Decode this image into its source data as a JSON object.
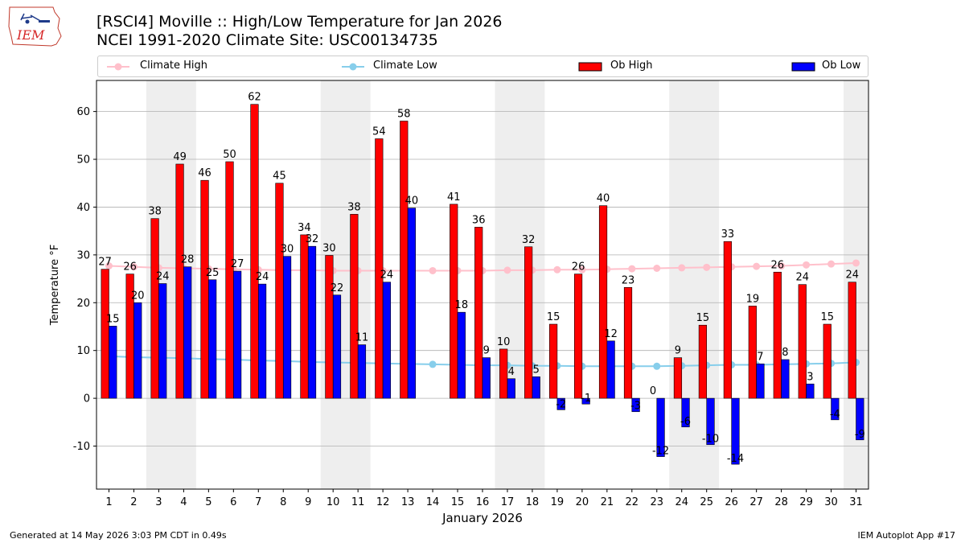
{
  "title_line1": "[RSCI4] Moville :: High/Low Temperature for Jan 2026",
  "title_line2": "NCEI 1991-2020 Climate Site: USC00134735",
  "footer_left": "Generated at 14 May 2026 3:03 PM CDT in 0.49s",
  "footer_right": "IEM Autoplot App #17",
  "logo_text": "IEM",
  "colors": {
    "ob_high": "#ff0000",
    "ob_low": "#0000ff",
    "climate_high": "#ffc0cb",
    "climate_low": "#87ceeb",
    "weekend_shade": "#eeeeee",
    "grid": "#b0b0b0"
  },
  "chart_data": {
    "type": "bar",
    "xlabel": "January 2026",
    "ylabel": "Temperature °F",
    "ylim": [
      -19,
      66.5
    ],
    "yticks": [
      -10,
      0,
      10,
      20,
      30,
      40,
      50,
      60
    ],
    "grid": "horizontal",
    "legend_position": "top",
    "categories": [
      "1",
      "2",
      "3",
      "4",
      "5",
      "6",
      "7",
      "8",
      "9",
      "10",
      "11",
      "12",
      "13",
      "14",
      "15",
      "16",
      "17",
      "18",
      "19",
      "20",
      "21",
      "22",
      "23",
      "24",
      "25",
      "26",
      "27",
      "28",
      "29",
      "30",
      "31"
    ],
    "shaded_days": [
      [
        3,
        4
      ],
      [
        10,
        11
      ],
      [
        17,
        18
      ],
      [
        24,
        25
      ],
      [
        31,
        31
      ]
    ],
    "series": [
      {
        "name": "Ob High",
        "kind": "bar",
        "values": [
          27,
          26,
          38,
          49,
          46,
          50,
          62,
          45,
          34,
          30,
          38,
          54,
          58,
          null,
          41,
          36,
          10,
          32,
          15,
          26,
          40,
          23,
          0,
          9,
          15,
          33,
          19,
          26,
          24,
          15,
          24
        ],
        "plotted": [
          27,
          26,
          37.6,
          49,
          45.6,
          49.5,
          61.5,
          45,
          34.2,
          29.9,
          38.5,
          54.3,
          58,
          null,
          40.6,
          35.8,
          10.3,
          31.7,
          15.5,
          26,
          40.3,
          23.2,
          0,
          8.5,
          15.3,
          32.8,
          19.3,
          26.4,
          23.8,
          15.5,
          24.3
        ]
      },
      {
        "name": "Ob Low",
        "kind": "bar",
        "values": [
          15,
          20,
          24,
          28,
          25,
          27,
          24,
          30,
          32,
          22,
          11,
          24,
          40,
          null,
          18,
          9,
          4,
          5,
          -2,
          -1,
          12,
          -3,
          -12,
          -6,
          -10,
          -14,
          7,
          8,
          3,
          -4,
          -9
        ],
        "plotted": [
          15.1,
          20,
          24,
          27.5,
          24.8,
          26.6,
          23.9,
          29.7,
          31.8,
          21.6,
          11.2,
          24.3,
          39.8,
          null,
          18,
          8.5,
          4.1,
          4.5,
          -2.4,
          -1.2,
          12,
          -2.8,
          -12.2,
          -6,
          -9.7,
          -13.8,
          7.2,
          8.1,
          3,
          -4.5,
          -8.7
        ]
      },
      {
        "name": "Climate High",
        "kind": "line",
        "values": [
          27.7,
          27.5,
          27.3,
          27.2,
          27.1,
          27,
          26.9,
          26.8,
          26.8,
          26.7,
          26.7,
          26.7,
          26.7,
          26.7,
          26.7,
          26.7,
          26.8,
          26.8,
          26.9,
          26.9,
          27,
          27.1,
          27.2,
          27.3,
          27.4,
          27.5,
          27.6,
          27.7,
          27.9,
          28.1,
          28.3
        ]
      },
      {
        "name": "Climate Low",
        "kind": "line",
        "values": [
          8.8,
          8.6,
          8.5,
          8.4,
          8.2,
          8.1,
          7.9,
          7.8,
          7.6,
          7.5,
          7.4,
          7.3,
          7.2,
          7.1,
          7,
          6.9,
          6.9,
          6.8,
          6.8,
          6.7,
          6.7,
          6.7,
          6.7,
          6.8,
          6.9,
          7,
          7,
          7.1,
          7.2,
          7.3,
          7.5
        ]
      }
    ]
  }
}
